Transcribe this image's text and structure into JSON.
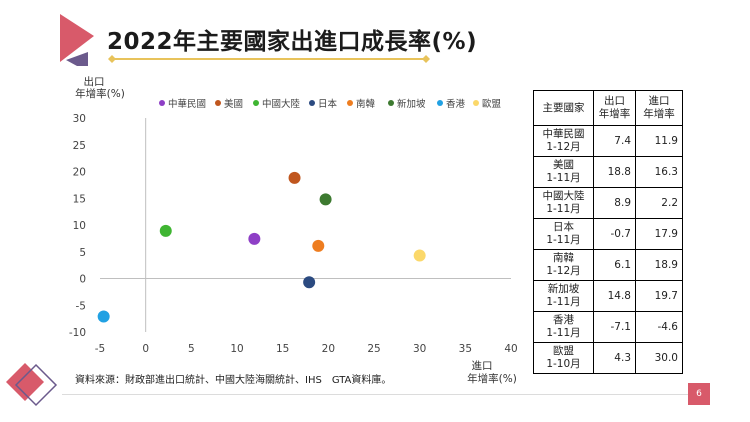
{
  "title": "2022年主要國家出進口成長率(%)",
  "source_note": "資料來源：財政部進出口統計、中國大陸海關統計、IHS　GTA資料庫。",
  "page_number": "6",
  "colors": {
    "title_line": "#e8c35b",
    "deco_pink": "#d85a6a",
    "deco_purple": "#6b5a8c"
  },
  "chart_data": {
    "type": "scatter",
    "title": "",
    "ylabel_line1": "出口",
    "ylabel_line2": "年增率(%)",
    "xlabel_line1": "進口",
    "xlabel_line2": "年增率(%)",
    "xlim": [
      -5,
      40
    ],
    "ylim": [
      -10,
      30
    ],
    "x_ticks": [
      "-5",
      "0",
      "5",
      "10",
      "15",
      "20",
      "25",
      "30",
      "35",
      "40"
    ],
    "y_ticks": [
      "30",
      "25",
      "20",
      "15",
      "10",
      "5",
      "0",
      "-5",
      "-10"
    ],
    "legend_position": "top",
    "series": [
      {
        "name": "中華民國",
        "color": "#8e3fc6",
        "x": 11.9,
        "y": 7.4
      },
      {
        "name": "美國",
        "color": "#c0561e",
        "x": 16.3,
        "y": 18.8
      },
      {
        "name": "中國大陸",
        "color": "#3fb532",
        "x": 2.2,
        "y": 8.9
      },
      {
        "name": "日本",
        "color": "#2b4a80",
        "x": 17.9,
        "y": -0.7
      },
      {
        "name": "南韓",
        "color": "#ee7d20",
        "x": 18.9,
        "y": 6.1
      },
      {
        "name": "新加坡",
        "color": "#3d7a30",
        "x": 19.7,
        "y": 14.8
      },
      {
        "name": "香港",
        "color": "#21a1e3",
        "x": -4.6,
        "y": -7.1
      },
      {
        "name": "歐盟",
        "color": "#fbd86a",
        "x": 30.0,
        "y": 4.3
      }
    ]
  },
  "table": {
    "headers": [
      "主要國家",
      "出口\n年增率",
      "進口\n年增率"
    ],
    "rows": [
      {
        "country": "中華民國\n1-12月",
        "export": "7.4",
        "import": "11.9"
      },
      {
        "country": "美國\n1-11月",
        "export": "18.8",
        "import": "16.3"
      },
      {
        "country": "中國大陸\n1-11月",
        "export": "8.9",
        "import": "2.2"
      },
      {
        "country": "日本\n1-11月",
        "export": "-0.7",
        "import": "17.9"
      },
      {
        "country": "南韓\n1-12月",
        "export": "6.1",
        "import": "18.9"
      },
      {
        "country": "新加坡\n1-11月",
        "export": "14.8",
        "import": "19.7"
      },
      {
        "country": "香港\n1-11月",
        "export": "-7.1",
        "import": "-4.6"
      },
      {
        "country": "歐盟\n1-10月",
        "export": "4.3",
        "import": "30.0"
      }
    ]
  }
}
